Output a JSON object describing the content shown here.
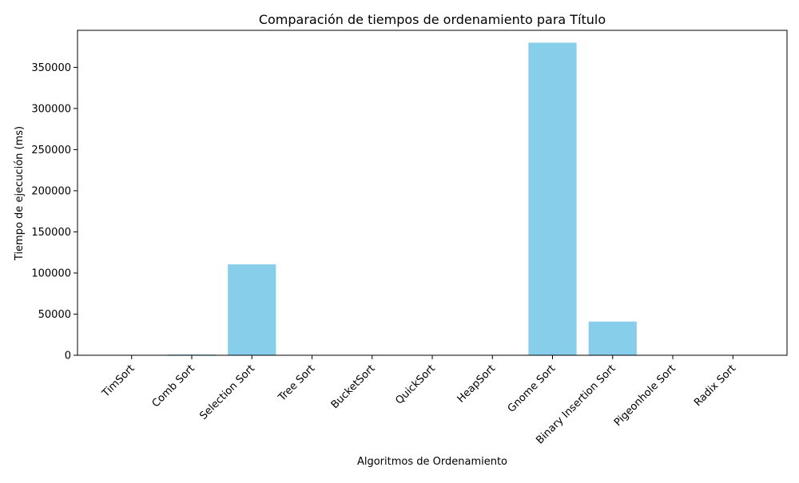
{
  "chart_data": {
    "type": "bar",
    "title": "Comparación de tiempos de ordenamiento para Título",
    "xlabel": "Algoritmos de Ordenamiento",
    "ylabel": "Tiempo de ejecución (ms)",
    "categories": [
      "TimSort",
      "Comb Sort",
      "Selection Sort",
      "Tree Sort",
      "BucketSort",
      "QuickSort",
      "HeapSort",
      "Gnome Sort",
      "Binary Insertion Sort",
      "Pigeonhole Sort",
      "Radix Sort"
    ],
    "values": [
      120,
      900,
      110500,
      150,
      60,
      90,
      200,
      380000,
      41000,
      50,
      80
    ],
    "ylim": [
      0,
      395000
    ],
    "yticks": [
      0,
      50000,
      100000,
      150000,
      200000,
      250000,
      300000,
      350000
    ],
    "bar_color": "#87CEEB",
    "grid": false,
    "legend": false
  }
}
